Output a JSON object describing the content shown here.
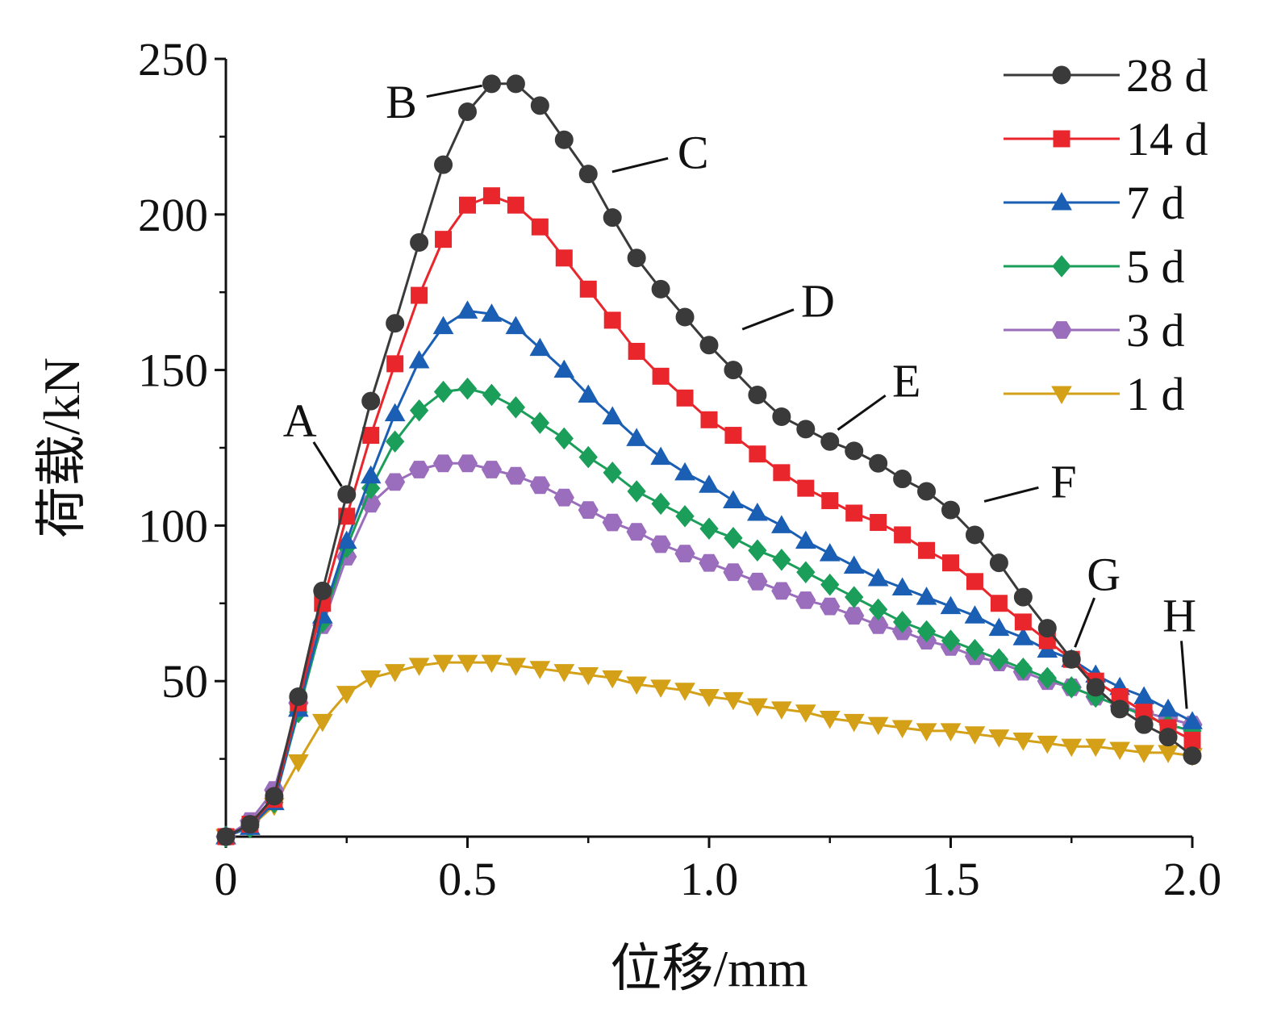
{
  "chart_data": {
    "type": "line",
    "xlabel": "位移/mm",
    "ylabel": "荷载/kN",
    "xlim": [
      0,
      2.0
    ],
    "ylim": [
      0,
      250
    ],
    "xticks": [
      0,
      0.5,
      1.0,
      1.5,
      2.0
    ],
    "xtick_labels": [
      "0",
      "0.5",
      "1.0",
      "1.5",
      "2.0"
    ],
    "yticks": [
      50,
      100,
      150,
      200,
      250
    ],
    "ytick_labels": [
      "50",
      "100",
      "150",
      "200",
      "250"
    ],
    "grid": false,
    "legend_position": "top-right",
    "x": [
      0.0,
      0.05,
      0.1,
      0.15,
      0.2,
      0.25,
      0.3,
      0.35,
      0.4,
      0.45,
      0.5,
      0.55,
      0.6,
      0.65,
      0.7,
      0.75,
      0.8,
      0.85,
      0.9,
      0.95,
      1.0,
      1.05,
      1.1,
      1.15,
      1.2,
      1.25,
      1.3,
      1.35,
      1.4,
      1.45,
      1.5,
      1.55,
      1.6,
      1.65,
      1.7,
      1.75,
      1.8,
      1.85,
      1.9,
      1.95,
      2.0
    ],
    "series": [
      {
        "name": "28 d",
        "color": "#3a3a3a",
        "marker": "circle",
        "values": [
          0,
          4,
          13,
          45,
          79,
          110,
          140,
          165,
          191,
          216,
          233,
          242,
          242,
          235,
          224,
          213,
          199,
          186,
          176,
          167,
          158,
          150,
          142,
          135,
          131,
          127,
          124,
          120,
          115,
          111,
          105,
          97,
          88,
          77,
          67,
          57,
          48,
          41,
          36,
          32,
          26
        ]
      },
      {
        "name": "14 d",
        "color": "#e8262c",
        "marker": "square",
        "values": [
          0,
          4,
          12,
          43,
          75,
          103,
          129,
          152,
          174,
          192,
          203,
          206,
          203,
          196,
          186,
          176,
          166,
          156,
          148,
          141,
          134,
          129,
          123,
          117,
          112,
          108,
          104,
          101,
          97,
          92,
          88,
          82,
          75,
          69,
          63,
          57,
          50,
          45,
          40,
          35,
          31
        ]
      },
      {
        "name": "7 d",
        "color": "#1a5fb4",
        "marker": "triangle-up",
        "values": [
          0,
          3,
          11,
          41,
          71,
          95,
          116,
          136,
          153,
          164,
          169,
          168,
          164,
          157,
          150,
          142,
          135,
          128,
          122,
          117,
          113,
          108,
          104,
          100,
          95,
          91,
          87,
          83,
          80,
          77,
          74,
          71,
          67,
          64,
          60,
          57,
          52,
          48,
          45,
          41,
          37
        ]
      },
      {
        "name": "5 d",
        "color": "#1b9e5a",
        "marker": "diamond",
        "values": [
          0,
          3,
          11,
          40,
          69,
          93,
          112,
          127,
          137,
          143,
          144,
          142,
          138,
          133,
          128,
          122,
          117,
          111,
          107,
          103,
          99,
          96,
          92,
          89,
          85,
          81,
          77,
          73,
          69,
          66,
          63,
          60,
          57,
          54,
          51,
          48,
          45,
          42,
          39,
          36,
          34
        ]
      },
      {
        "name": "3 d",
        "color": "#9b6dbd",
        "marker": "hexagon",
        "values": [
          0,
          5,
          15,
          43,
          68,
          90,
          107,
          114,
          118,
          120,
          120,
          118,
          116,
          113,
          109,
          105,
          101,
          98,
          94,
          91,
          88,
          85,
          82,
          79,
          76,
          74,
          71,
          68,
          66,
          63,
          61,
          58,
          56,
          53,
          50,
          48,
          45,
          42,
          40,
          38,
          36
        ]
      },
      {
        "name": "1 d",
        "color": "#d4a017",
        "marker": "triangle-down",
        "values": [
          0,
          3,
          10,
          24,
          37,
          46,
          51,
          53,
          55,
          56,
          56,
          56,
          55,
          54,
          53,
          52,
          51,
          49,
          48,
          47,
          45,
          44,
          42,
          41,
          40,
          38,
          37,
          36,
          35,
          34,
          34,
          33,
          32,
          31,
          30,
          29,
          29,
          28,
          27,
          27,
          26
        ]
      }
    ],
    "annotations": [
      {
        "label": "A",
        "x": 0.25,
        "y": 110
      },
      {
        "label": "B",
        "x": 0.55,
        "y": 242
      },
      {
        "label": "C",
        "x": 0.78,
        "y": 213
      },
      {
        "label": "D",
        "x": 1.05,
        "y": 162
      },
      {
        "label": "E",
        "x": 1.25,
        "y": 129
      },
      {
        "label": "F",
        "x": 1.55,
        "y": 107
      },
      {
        "label": "G",
        "x": 1.75,
        "y": 58
      },
      {
        "label": "H",
        "x": 1.99,
        "y": 38
      }
    ]
  }
}
